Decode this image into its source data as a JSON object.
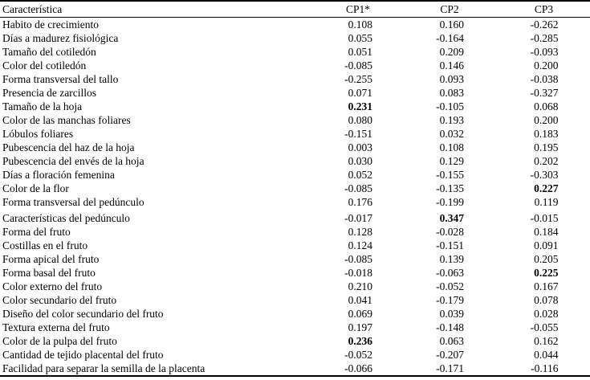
{
  "page": {
    "background_color": "#ffffff",
    "text_color": "#000000",
    "border_color": "#000000"
  },
  "table": {
    "columns": [
      {
        "key": "label",
        "label": "Característica"
      },
      {
        "key": "cp1",
        "label": "CP1*"
      },
      {
        "key": "cp2",
        "label": "CP2"
      },
      {
        "key": "cp3",
        "label": "CP3"
      }
    ],
    "rows": [
      {
        "label": "Habito de crecimiento",
        "cp1": "0.108",
        "cp2": "0.160",
        "cp3": "-0.262",
        "bold": []
      },
      {
        "label": "Días a madurez fisiológica",
        "cp1": "0.055",
        "cp2": "-0.164",
        "cp3": "-0.285",
        "bold": []
      },
      {
        "label": "Tamaño del cotiledón",
        "cp1": "0.051",
        "cp2": "0.209",
        "cp3": "-0.093",
        "bold": []
      },
      {
        "label": "Color del cotiledón",
        "cp1": "-0.085",
        "cp2": "0.146",
        "cp3": "0.200",
        "bold": []
      },
      {
        "label": "Forma transversal del tallo",
        "cp1": "-0.255",
        "cp2": "0.093",
        "cp3": "-0.038",
        "bold": []
      },
      {
        "label": "Presencia de zarcillos",
        "cp1": "0.071",
        "cp2": "0.083",
        "cp3": "-0.327",
        "bold": []
      },
      {
        "label": "Tamaño de la hoja",
        "cp1": "0.231",
        "cp2": "-0.105",
        "cp3": "0.068",
        "bold": [
          "cp1"
        ]
      },
      {
        "label": "Color de las manchas foliares",
        "cp1": "0.080",
        "cp2": "0.193",
        "cp3": "0.200",
        "bold": []
      },
      {
        "label": "Lóbulos foliares",
        "cp1": "-0.151",
        "cp2": "0.032",
        "cp3": "0.183",
        "bold": []
      },
      {
        "label": "Pubescencia del haz de la hoja",
        "cp1": "0.003",
        "cp2": "0.108",
        "cp3": "0.195",
        "bold": []
      },
      {
        "label": "Pubescencia del envés de la hoja",
        "cp1": "0.030",
        "cp2": "0.129",
        "cp3": "0.202",
        "bold": []
      },
      {
        "label": "Días a floración femenina",
        "cp1": "0.052",
        "cp2": "-0.155",
        "cp3": "-0.303",
        "bold": []
      },
      {
        "label": "Color de la flor",
        "cp1": "-0.085",
        "cp2": "-0.135",
        "cp3": "0.227",
        "bold": [
          "cp3"
        ]
      },
      {
        "label": "Forma transversal del pedúnculo",
        "cp1": "0.176",
        "cp2": "-0.199",
        "cp3": "0.119",
        "bold": []
      },
      {
        "label": "Características del pedúnculo",
        "cp1": "-0.017",
        "cp2": "0.347",
        "cp3": "-0.015",
        "bold": [
          "cp2"
        ],
        "extra_space": true
      },
      {
        "label": "Forma del fruto",
        "cp1": "0.128",
        "cp2": "-0.028",
        "cp3": "0.184",
        "bold": []
      },
      {
        "label": "Costillas en el fruto",
        "cp1": "0.124",
        "cp2": "-0.151",
        "cp3": "0.091",
        "bold": []
      },
      {
        "label": "Forma apical del fruto",
        "cp1": "-0.085",
        "cp2": "0.139",
        "cp3": "0.205",
        "bold": []
      },
      {
        "label": "Forma basal del fruto",
        "cp1": "-0.018",
        "cp2": "-0.063",
        "cp3": "0.225",
        "bold": [
          "cp3"
        ]
      },
      {
        "label": "Color externo del fruto",
        "cp1": "0.210",
        "cp2": "-0.052",
        "cp3": "0.167",
        "bold": []
      },
      {
        "label": "Color secundario del fruto",
        "cp1": "0.041",
        "cp2": "-0.179",
        "cp3": "0.078",
        "bold": []
      },
      {
        "label": "Diseño del color secundario del fruto",
        "cp1": "0.069",
        "cp2": "0.039",
        "cp3": "0.028",
        "bold": []
      },
      {
        "label": "Textura externa del fruto",
        "cp1": "0.197",
        "cp2": "-0.148",
        "cp3": "-0.055",
        "bold": []
      },
      {
        "label": "Color de la pulpa del fruto",
        "cp1": "0.236",
        "cp2": "0.063",
        "cp3": "0.162",
        "bold": [
          "cp1"
        ]
      },
      {
        "label": "Cantidad de tejido placental del fruto",
        "cp1": "-0.052",
        "cp2": "-0.207",
        "cp3": "0.044",
        "bold": []
      },
      {
        "label": "Facilidad para separar la semilla de la placenta",
        "cp1": "-0.066",
        "cp2": "-0.171",
        "cp3": "-0.116",
        "bold": []
      }
    ]
  }
}
